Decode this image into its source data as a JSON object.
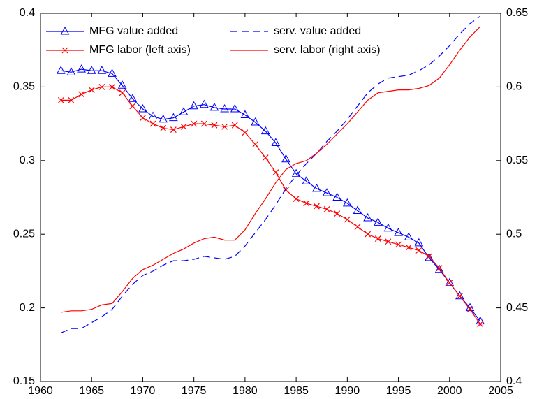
{
  "chart_data": {
    "type": "line",
    "x": [
      1962,
      1963,
      1964,
      1965,
      1966,
      1967,
      1968,
      1969,
      1970,
      1971,
      1972,
      1973,
      1974,
      1975,
      1976,
      1977,
      1978,
      1979,
      1980,
      1981,
      1982,
      1983,
      1984,
      1985,
      1986,
      1987,
      1988,
      1989,
      1990,
      1991,
      1992,
      1993,
      1994,
      1995,
      1996,
      1997,
      1998,
      1999,
      2000,
      2001,
      2002,
      2003
    ],
    "xlim": [
      1960,
      2005
    ],
    "xticks": [
      1960,
      1965,
      1970,
      1975,
      1980,
      1985,
      1990,
      1995,
      2000,
      2005
    ],
    "ylim": [
      0.15,
      0.4
    ],
    "yticks": [
      0.15,
      0.2,
      0.25,
      0.3,
      0.35,
      0.4
    ],
    "y2lim": [
      0.4,
      0.65
    ],
    "y2ticks": [
      0.4,
      0.45,
      0.5,
      0.55,
      0.6,
      0.65
    ],
    "legend": "upper-left",
    "series": [
      {
        "name": "MFG value added",
        "color": "#0000ff",
        "marker": "triangle",
        "dash": "solid",
        "values": [
          0.361,
          0.36,
          0.362,
          0.361,
          0.361,
          0.359,
          0.351,
          0.342,
          0.335,
          0.33,
          0.328,
          0.329,
          0.333,
          0.337,
          0.338,
          0.336,
          0.335,
          0.335,
          0.331,
          0.326,
          0.32,
          0.312,
          0.301,
          0.291,
          0.286,
          0.281,
          0.278,
          0.275,
          0.271,
          0.266,
          0.261,
          0.258,
          0.254,
          0.251,
          0.248,
          0.244,
          0.234,
          0.226,
          0.217,
          0.208,
          0.2,
          0.191
        ]
      },
      {
        "name": "MFG labor (left axis)",
        "color": "#ff0000",
        "marker": "x",
        "dash": "solid",
        "values": [
          0.341,
          0.341,
          0.345,
          0.348,
          0.35,
          0.35,
          0.346,
          0.337,
          0.329,
          0.325,
          0.322,
          0.321,
          0.323,
          0.325,
          0.325,
          0.324,
          0.323,
          0.324,
          0.319,
          0.311,
          0.302,
          0.292,
          0.28,
          0.274,
          0.271,
          0.269,
          0.267,
          0.264,
          0.26,
          0.255,
          0.25,
          0.247,
          0.245,
          0.243,
          0.241,
          0.239,
          0.235,
          0.227,
          0.217,
          0.208,
          0.199,
          0.189
        ]
      },
      {
        "name": "serv. value added",
        "color": "#0000ff",
        "marker": "none",
        "dash": "dashed",
        "axis": "y2",
        "values": [
          0.433,
          0.436,
          0.436,
          0.44,
          0.444,
          0.449,
          0.458,
          0.466,
          0.472,
          0.475,
          0.479,
          0.482,
          0.482,
          0.483,
          0.485,
          0.484,
          0.483,
          0.485,
          0.492,
          0.501,
          0.51,
          0.52,
          0.531,
          0.54,
          0.548,
          0.555,
          0.563,
          0.57,
          0.578,
          0.587,
          0.596,
          0.602,
          0.606,
          0.607,
          0.608,
          0.611,
          0.615,
          0.621,
          0.628,
          0.636,
          0.643,
          0.648
        ]
      },
      {
        "name": "serv. labor (right axis)",
        "color": "#ff0000",
        "marker": "none",
        "dash": "solid",
        "axis": "y2",
        "values": [
          0.447,
          0.448,
          0.448,
          0.449,
          0.452,
          0.453,
          0.461,
          0.47,
          0.476,
          0.479,
          0.483,
          0.487,
          0.49,
          0.494,
          0.497,
          0.498,
          0.496,
          0.496,
          0.503,
          0.514,
          0.524,
          0.535,
          0.544,
          0.548,
          0.55,
          0.555,
          0.561,
          0.568,
          0.575,
          0.583,
          0.591,
          0.596,
          0.597,
          0.598,
          0.598,
          0.599,
          0.601,
          0.606,
          0.615,
          0.625,
          0.634,
          0.641
        ]
      }
    ]
  }
}
